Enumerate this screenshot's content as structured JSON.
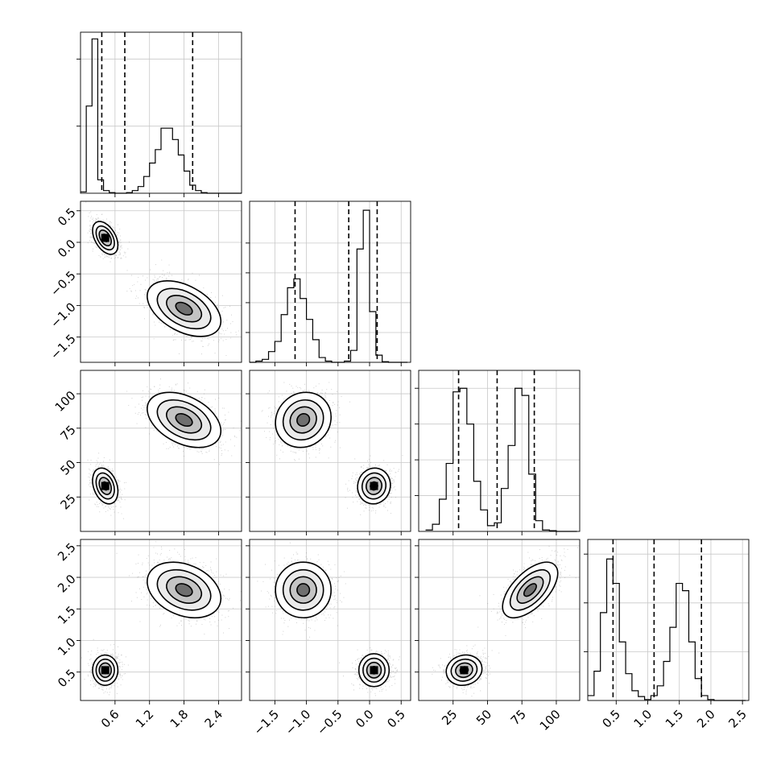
{
  "chart_data": {
    "type": "corner",
    "grid": true,
    "parameters": [
      {
        "range": [
          0.0,
          2.8
        ],
        "ticks": [
          0.6,
          1.2,
          1.8,
          2.4
        ],
        "tick_labels": [
          "0.6",
          "1.2",
          "1.8",
          "2.4"
        ],
        "quantiles": [
          0.37,
          0.77,
          1.95
        ]
      },
      {
        "range": [
          -1.9,
          0.65
        ],
        "ticks": [
          -1.5,
          -1.0,
          -0.5,
          0.0,
          0.5
        ],
        "tick_labels": [
          "−1.5",
          "−1.0",
          "−0.5",
          "0.0",
          "0.5"
        ],
        "quantiles": [
          -1.18,
          -0.33,
          0.12
        ]
      },
      {
        "range": [
          0,
          117
        ],
        "ticks": [
          25,
          50,
          75,
          100
        ],
        "tick_labels": [
          "25",
          "50",
          "75",
          "100"
        ],
        "quantiles": [
          29,
          57,
          84
        ]
      },
      {
        "range": [
          0.05,
          2.6
        ],
        "ticks": [
          0.5,
          1.0,
          1.5,
          2.0,
          2.5
        ],
        "tick_labels": [
          "0.5",
          "1.0",
          "1.5",
          "2.0",
          "2.5"
        ],
        "quantiles": [
          0.45,
          1.1,
          1.85
        ]
      }
    ],
    "histograms": [
      {
        "bin_start": 0.0,
        "bin_width": 0.1,
        "counts": [
          2,
          130,
          230,
          20,
          4,
          1,
          0,
          0,
          1,
          4,
          10,
          25,
          45,
          65,
          97,
          97,
          80,
          57,
          33,
          12,
          4,
          1,
          0,
          0,
          0,
          0,
          0,
          0
        ],
        "ymax": 240,
        "yticks": [
          100,
          200
        ]
      },
      {
        "bin_start": -1.9,
        "bin_width": 0.1,
        "counts": [
          0,
          2,
          5,
          18,
          35,
          80,
          125,
          140,
          107,
          72,
          38,
          8,
          2,
          0,
          0,
          2,
          20,
          190,
          255,
          85,
          12,
          1,
          0,
          0,
          0
        ],
        "ymax": 270,
        "yticks": [
          50,
          100,
          150,
          200
        ]
      },
      {
        "bin_start": 5,
        "bin_width": 5,
        "counts": [
          2,
          10,
          45,
          95,
          195,
          200,
          150,
          70,
          30,
          8,
          12,
          60,
          120,
          200,
          190,
          80,
          15,
          2,
          1,
          0,
          0,
          0
        ],
        "ymax": 225,
        "yticks": [
          50,
          100,
          150,
          200
        ]
      },
      {
        "bin_start": 0.05,
        "bin_width": 0.1,
        "counts": [
          10,
          60,
          180,
          290,
          240,
          120,
          55,
          20,
          8,
          2,
          10,
          30,
          80,
          150,
          240,
          225,
          120,
          45,
          10,
          2,
          0,
          0,
          0,
          0,
          0
        ],
        "ymax": 330,
        "yticks": [
          100,
          200,
          300
        ]
      }
    ],
    "modes": [
      [
        0.43,
        0.07,
        33,
        0.53
      ],
      [
        1.8,
        -1.05,
        81,
        1.8
      ]
    ],
    "sigmas": [
      [
        0.11,
        0.13,
        6.5,
        0.12
      ],
      [
        0.32,
        0.22,
        10,
        0.22
      ]
    ],
    "correlations": [
      {
        "i": 1,
        "j": 0,
        "r": [
          -0.45,
          -0.45
        ]
      },
      {
        "i": 2,
        "j": 0,
        "r": [
          -0.3,
          -0.4
        ]
      },
      {
        "i": 2,
        "j": 1,
        "r": [
          0.05,
          0.1
        ]
      },
      {
        "i": 3,
        "j": 0,
        "r": [
          0.0,
          -0.3
        ]
      },
      {
        "i": 3,
        "j": 1,
        "r": [
          0.0,
          0.0
        ]
      },
      {
        "i": 3,
        "j": 2,
        "r": [
          0.1,
          0.6
        ]
      }
    ]
  }
}
